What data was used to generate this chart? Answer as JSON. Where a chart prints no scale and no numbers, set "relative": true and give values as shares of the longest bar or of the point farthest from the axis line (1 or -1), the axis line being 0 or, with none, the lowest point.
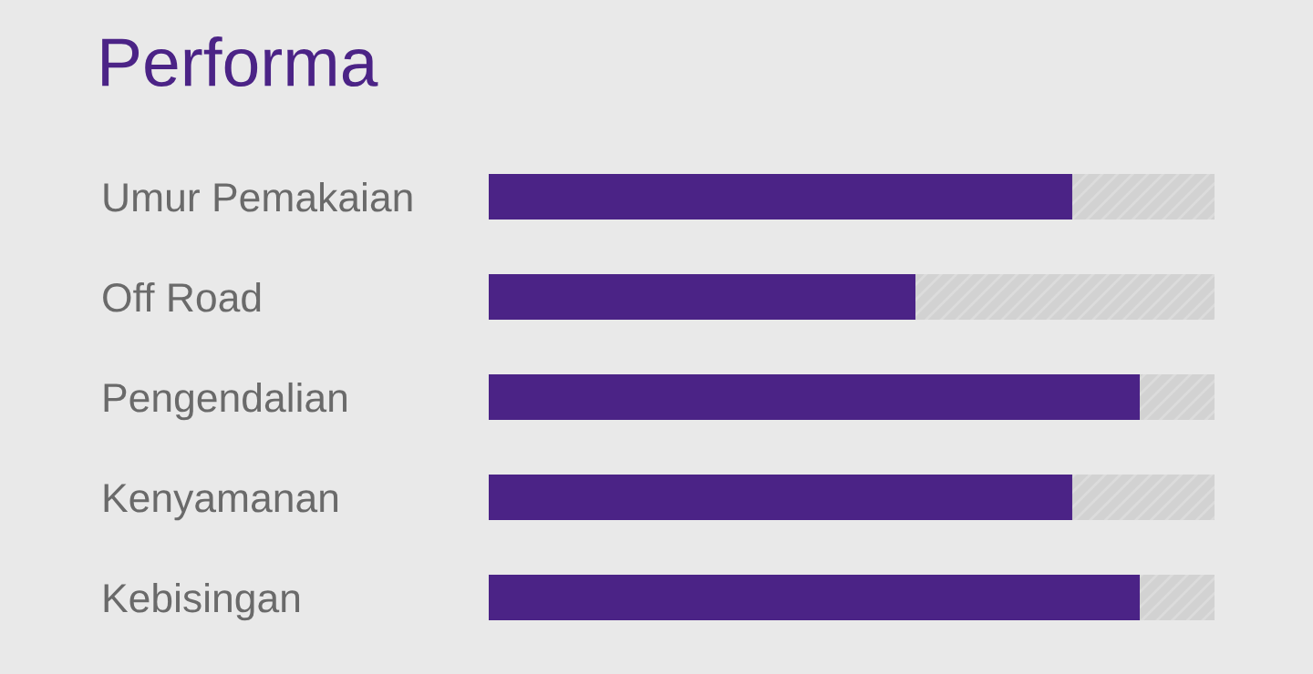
{
  "chart_data": {
    "type": "bar",
    "title": "Performa",
    "orientation": "horizontal",
    "stacked": true,
    "relative": true,
    "categories": [
      "Umur Pemakaian",
      "Off Road",
      "Pengendalian",
      "Kenyamanan",
      "Kebisingan"
    ],
    "series": [
      {
        "color": "#4b2386",
        "values": [
          0.804,
          0.588,
          0.897,
          0.804,
          0.897
        ]
      },
      {
        "color": "#d2d2d2",
        "values": [
          0.196,
          0.412,
          0.103,
          0.196,
          0.103
        ]
      }
    ]
  }
}
